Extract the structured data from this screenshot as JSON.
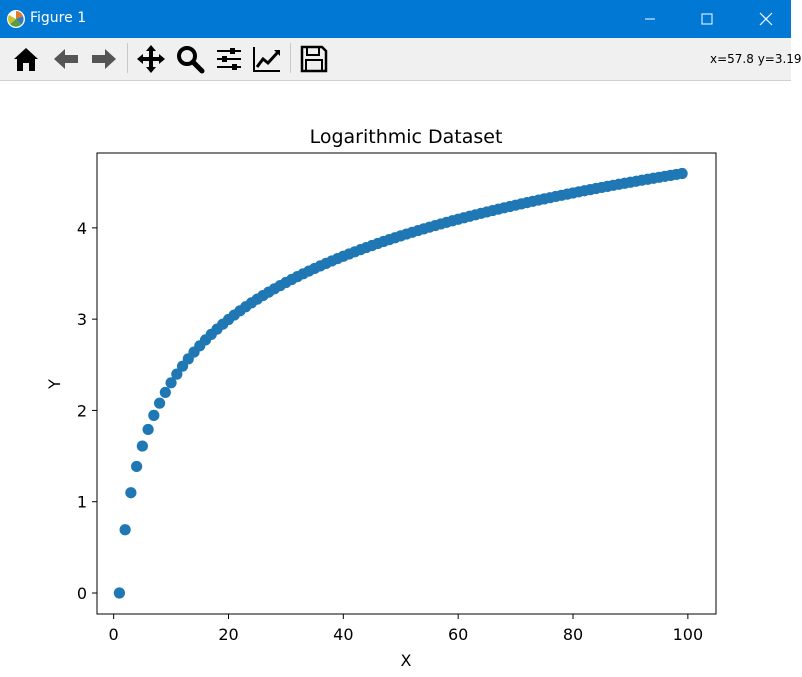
{
  "window": {
    "title": "Figure 1",
    "accent_color": "#0078d4",
    "controls": [
      "minimize-icon",
      "maximize-icon",
      "close-icon"
    ]
  },
  "toolbar": {
    "tools": [
      "home-icon",
      "back-arrow-icon",
      "forward-arrow-icon",
      "pan-icon",
      "zoom-icon",
      "configure-subplots-icon",
      "edit-axis-icon",
      "save-icon"
    ],
    "coordinates": "x=57.8 y=3.19"
  },
  "chart_data": {
    "type": "scatter",
    "title": "Logarithmic Dataset",
    "xlabel": "X",
    "ylabel": "Y",
    "xlim": [
      -2.9,
      104.9
    ],
    "ylim": [
      -0.23,
      4.82
    ],
    "xticks": [
      0,
      20,
      40,
      60,
      80,
      100
    ],
    "yticks": [
      0,
      1,
      2,
      3,
      4
    ],
    "grid": false,
    "marker_color": "#1f77b4",
    "x_range": [
      1,
      99
    ],
    "formula": "y = ln(x)"
  }
}
